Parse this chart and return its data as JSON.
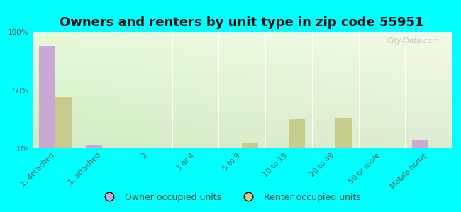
{
  "title": "Owners and renters by unit type in zip code 55951",
  "categories": [
    "1, detached",
    "1, attached",
    "2",
    "3 or 4",
    "5 to 9",
    "10 to 19",
    "20 to 49",
    "50 or more",
    "Mobile home"
  ],
  "owner_values": [
    88,
    3,
    0,
    0,
    0,
    0,
    0,
    0,
    7
  ],
  "renter_values": [
    44,
    0,
    0,
    0,
    4,
    25,
    26,
    0,
    0
  ],
  "owner_color": "#c9a8d4",
  "renter_color": "#c8cc8a",
  "background_color": "#00ffff",
  "ylim": [
    0,
    100
  ],
  "yticks": [
    0,
    50,
    100
  ],
  "ytick_labels": [
    "0%",
    "50%",
    "100%"
  ],
  "bar_width": 0.35,
  "legend_owner": "Owner occupied units",
  "legend_renter": "Renter occupied units",
  "title_fontsize": 13,
  "tick_fontsize": 7.5,
  "legend_fontsize": 9,
  "watermark": "City-Data.com"
}
